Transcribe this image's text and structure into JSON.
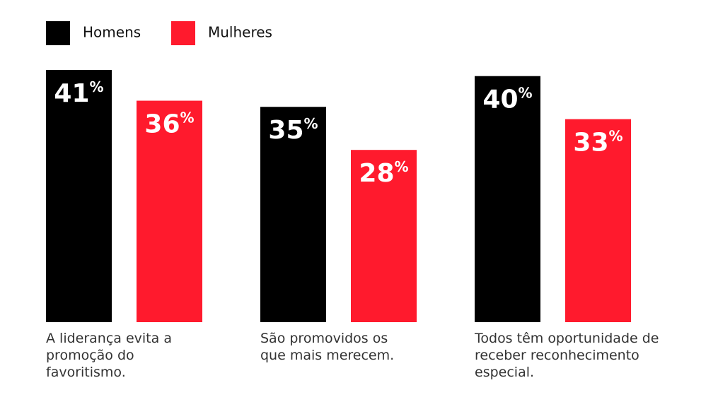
{
  "chart_data": {
    "type": "bar",
    "categories": [
      "A liderança evita a promoção do favoritismo.",
      "São promovidos os que mais merecem.",
      "Todos têm oportunidade de receber reconhecimento especial."
    ],
    "series": [
      {
        "name": "Homens",
        "color": "#000000",
        "values": [
          41,
          35,
          40
        ],
        "value_labels": [
          "41%",
          "35%",
          "40%"
        ]
      },
      {
        "name": "Mulheres",
        "color": "#ff1a2d",
        "values": [
          36,
          28,
          33
        ],
        "value_labels": [
          "36%",
          "28%",
          "33%"
        ]
      }
    ]
  }
}
